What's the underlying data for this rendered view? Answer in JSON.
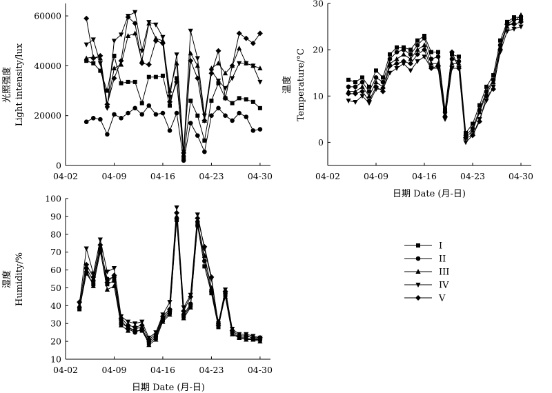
{
  "chart_data": [
    {
      "type": "line",
      "id": "light",
      "ylabel_cn": "光照强度",
      "ylabel": "Light intensity/lux",
      "xlabel": "",
      "ylim": [
        0,
        65000
      ],
      "yticks": [
        "0",
        "20000",
        "40000",
        "60000"
      ],
      "ytick_values": [
        0,
        20000,
        40000,
        60000
      ],
      "xticks": [
        "04-02",
        "04-09",
        "04-16",
        "04-23",
        "04-30"
      ],
      "xtick_days": [
        2,
        9,
        16,
        23,
        30
      ],
      "xlim": [
        2,
        31.5
      ],
      "x": [
        5,
        6,
        7,
        8,
        9,
        10,
        11,
        12,
        13,
        14,
        15,
        16,
        17,
        18,
        19,
        20,
        21,
        22,
        23,
        24,
        25,
        26,
        27,
        28,
        29,
        30
      ],
      "series": [
        {
          "name": "I",
          "values": [
            42000,
            41000,
            38000,
            30000,
            44000,
            33000,
            33500,
            33500,
            25000,
            35500,
            35500,
            36000,
            24000,
            35000,
            3000,
            26000,
            20000,
            10000,
            26000,
            33000,
            27000,
            25000,
            27000,
            26500,
            25500,
            23000
          ]
        },
        {
          "name": "II",
          "values": [
            17500,
            19000,
            18500,
            12500,
            20500,
            19000,
            21000,
            23000,
            20500,
            24000,
            20500,
            21000,
            14000,
            21000,
            2000,
            17000,
            12000,
            5500,
            20000,
            23000,
            20000,
            18000,
            21000,
            19500,
            14000,
            14500
          ]
        },
        {
          "name": "III",
          "values": [
            43000,
            43500,
            43000,
            24000,
            39000,
            40500,
            52000,
            53000,
            42000,
            57000,
            51000,
            50000,
            30000,
            41000,
            4500,
            45000,
            40000,
            18000,
            39000,
            41000,
            37000,
            40000,
            47000,
            41000,
            40000,
            39000
          ]
        },
        {
          "name": "IV",
          "values": [
            48500,
            50500,
            41000,
            23000,
            50000,
            52500,
            60000,
            61500,
            46000,
            57500,
            56500,
            51500,
            27500,
            44500,
            5500,
            54000,
            43000,
            20000,
            38000,
            34000,
            31000,
            35000,
            41000,
            41000,
            40000,
            33500
          ]
        },
        {
          "name": "V",
          "values": [
            59000,
            43000,
            44000,
            24500,
            35000,
            42000,
            59500,
            57000,
            41000,
            40500,
            50000,
            49000,
            25500,
            33500,
            5000,
            42000,
            35000,
            18000,
            37000,
            46000,
            27000,
            40000,
            53000,
            51000,
            49000,
            53000
          ]
        }
      ]
    },
    {
      "type": "line",
      "id": "temperature",
      "ylabel_cn": "温度",
      "ylabel": "Temperature/°C",
      "xlabel": "日期 Date (月-日)",
      "ylim": [
        -5,
        30
      ],
      "yticks": [
        "0",
        "10",
        "20",
        "30"
      ],
      "ytick_values": [
        0,
        10,
        20,
        30
      ],
      "xticks": [
        "04-02",
        "04-09",
        "04-16",
        "04-23",
        "04-30"
      ],
      "xtick_days": [
        2,
        9,
        16,
        23,
        30
      ],
      "xlim": [
        2,
        31.5
      ],
      "x": [
        5,
        6,
        7,
        8,
        9,
        10,
        11,
        12,
        13,
        14,
        15,
        16,
        17,
        18,
        19,
        20,
        21,
        22,
        23,
        24,
        25,
        26,
        27,
        28,
        29,
        30
      ],
      "series": [
        {
          "name": "I",
          "values": [
            13.5,
            13,
            14,
            12,
            15.5,
            14,
            19,
            20.5,
            20.5,
            20,
            22,
            23,
            19.5,
            19.5,
            7,
            19,
            18.5,
            2,
            4,
            8,
            12,
            14.5,
            22,
            26,
            27,
            27
          ]
        },
        {
          "name": "II",
          "values": [
            12,
            12,
            13,
            11,
            14,
            13,
            18,
            19.5,
            20,
            19,
            21,
            22.5,
            18,
            18.5,
            6.5,
            18,
            17.5,
            1.5,
            3,
            7,
            11,
            13.5,
            21,
            25.5,
            26.5,
            26.5
          ]
        },
        {
          "name": "III",
          "values": [
            11,
            11,
            12,
            10,
            13,
            12,
            17,
            18,
            19,
            18,
            20,
            21,
            17,
            17,
            6,
            17,
            17,
            1,
            2.5,
            6.5,
            10.5,
            13,
            20.5,
            25,
            26,
            27.5
          ]
        },
        {
          "name": "IV",
          "values": [
            9,
            8.7,
            10,
            8.5,
            11.5,
            11.5,
            15,
            16,
            17,
            15.5,
            17.5,
            18.5,
            16,
            16,
            5,
            16,
            16,
            0,
            1.5,
            5,
            9,
            12,
            19.5,
            24,
            24.5,
            25
          ]
        },
        {
          "name": "V",
          "values": [
            10.5,
            10.5,
            11,
            9,
            12,
            11,
            16.5,
            17,
            17.5,
            17,
            19,
            20,
            16,
            16.5,
            5.5,
            19.5,
            16,
            1,
            1.5,
            4.5,
            10,
            11.5,
            20,
            25.5,
            25.5,
            26
          ]
        }
      ]
    },
    {
      "type": "line",
      "id": "humidity",
      "ylabel_cn": "湿度",
      "ylabel": "Humidity/%",
      "xlabel": "日期 Date (月-日)",
      "ylim": [
        10,
        100
      ],
      "yticks": [
        "10",
        "20",
        "30",
        "40",
        "50",
        "60",
        "70",
        "80",
        "90",
        "100"
      ],
      "ytick_values": [
        10,
        20,
        30,
        40,
        50,
        60,
        70,
        80,
        90,
        100
      ],
      "xticks": [
        "04-02",
        "04-09",
        "04-16",
        "04-23",
        "04-30"
      ],
      "xtick_days": [
        2,
        9,
        16,
        23,
        30
      ],
      "xlim": [
        2,
        31.5
      ],
      "x": [
        4,
        5,
        6,
        7,
        8,
        9,
        10,
        11,
        12,
        13,
        14,
        15,
        16,
        17,
        18,
        19,
        20,
        21,
        22,
        23,
        24,
        25,
        26,
        27,
        28,
        29,
        30
      ],
      "series": [
        {
          "name": "I",
          "values": [
            38,
            58,
            52,
            70,
            52,
            54,
            30,
            28,
            26,
            26,
            19,
            22,
            32,
            36,
            88,
            34,
            40,
            85,
            62,
            47,
            28,
            46,
            25,
            22,
            22,
            21,
            21
          ]
        },
        {
          "name": "II",
          "values": [
            39,
            61,
            54,
            72,
            55,
            56,
            32,
            27,
            25,
            27,
            20,
            23,
            33,
            37,
            89,
            35,
            41,
            87,
            65,
            48,
            30,
            47,
            26,
            23,
            23,
            22,
            21
          ]
        },
        {
          "name": "III",
          "values": [
            40,
            60,
            51,
            71,
            49,
            51,
            29,
            26,
            27,
            28,
            18,
            21,
            31,
            35,
            90,
            33,
            39,
            86,
            68,
            50,
            31,
            45,
            24,
            22,
            21,
            21,
            20
          ]
        },
        {
          "name": "IV",
          "values": [
            41,
            72,
            58,
            77,
            59,
            61,
            34,
            31,
            30,
            31,
            22,
            25,
            35,
            42,
            95,
            39,
            46,
            91,
            72,
            55,
            30,
            49,
            27,
            24,
            24,
            23,
            22
          ]
        },
        {
          "name": "V",
          "values": [
            42,
            63,
            56,
            74,
            53,
            57,
            33,
            29,
            28,
            29,
            21,
            24,
            34,
            38,
            92,
            37,
            45,
            89,
            73,
            56,
            29,
            48,
            26,
            23,
            23,
            22,
            22
          ]
        }
      ]
    }
  ],
  "legend": {
    "entries": [
      "I",
      "II",
      "III",
      "IV",
      "V"
    ],
    "markers": [
      "square",
      "circle",
      "triangle-up",
      "triangle-down",
      "diamond"
    ]
  },
  "colors": {
    "line": "#000000",
    "marker": "#000000",
    "axis": "#000000",
    "background": "#ffffff"
  },
  "grid": false,
  "legend_placement": "right of humidity panel"
}
